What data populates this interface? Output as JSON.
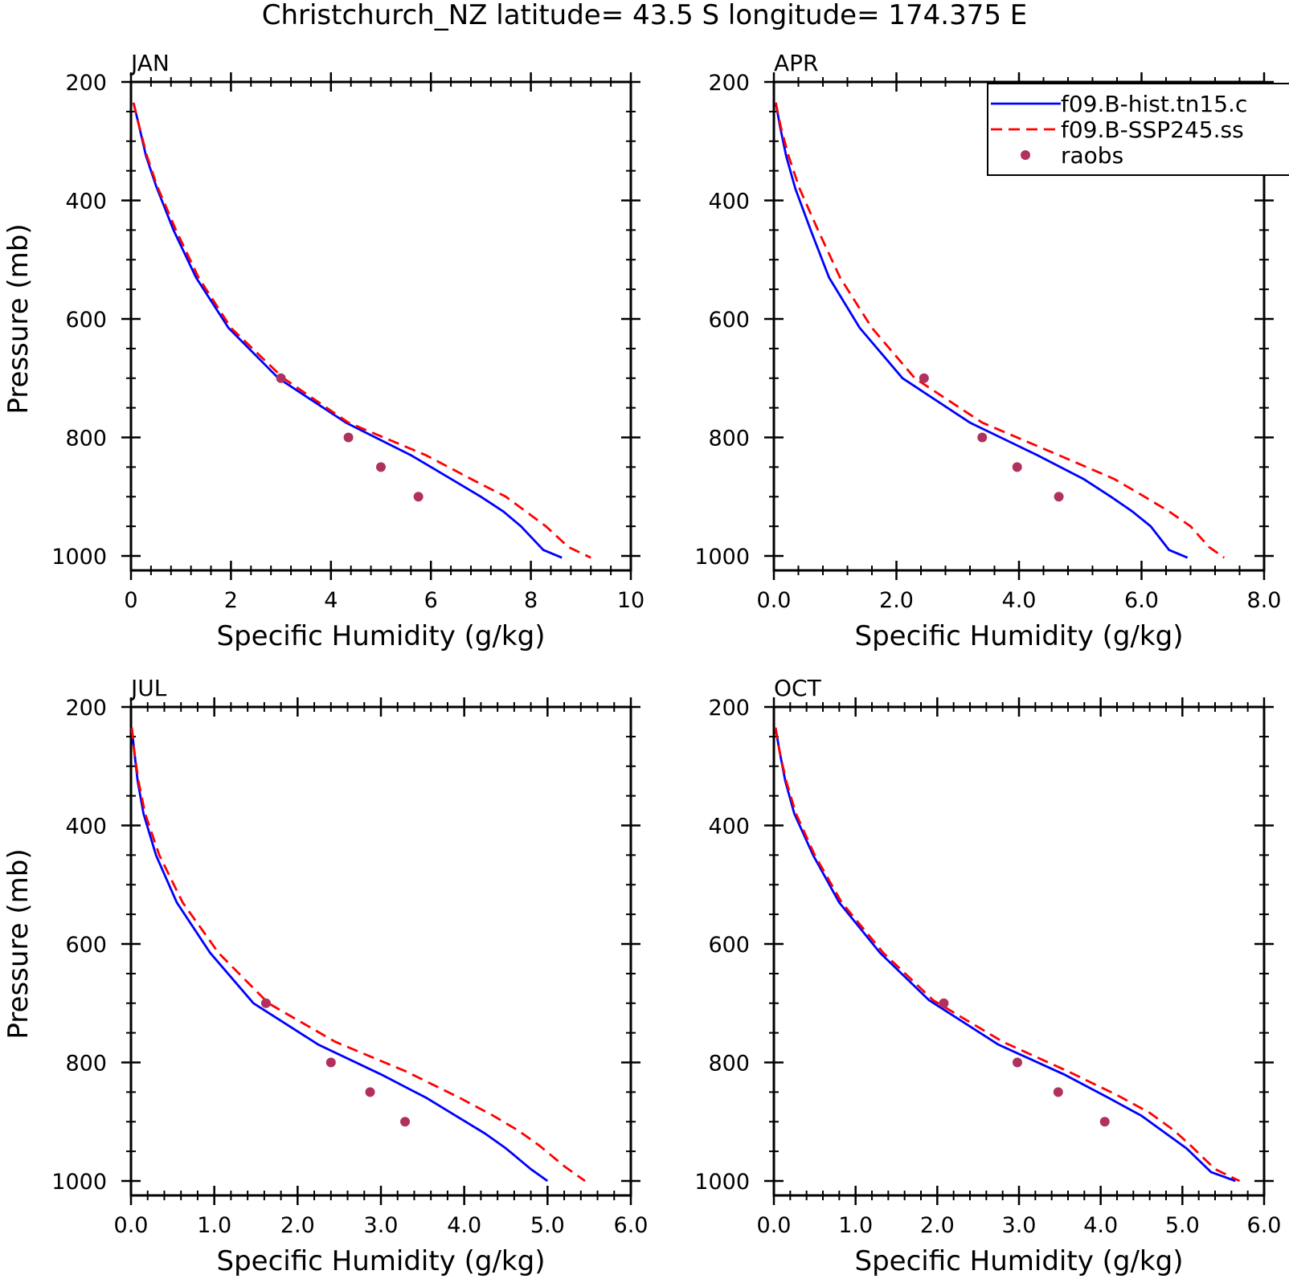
{
  "title": "Christchurch_NZ  latitude= 43.5 S longitude= 174.375 E",
  "colors": {
    "hist": "#0000ff",
    "ssp": "#ff0000",
    "raobs": "#b03060",
    "axis": "#000000"
  },
  "legend": {
    "entries": [
      {
        "label": "f09.B-hist.tn15.c",
        "style": "solid",
        "color": "#0000ff"
      },
      {
        "label": "f09.B-SSP245.ss",
        "style": "dashed",
        "color": "#ff0000"
      },
      {
        "label": "raobs",
        "style": "marker",
        "color": "#b03060"
      }
    ]
  },
  "chart_data": [
    {
      "type": "line",
      "panel": "JAN",
      "xlabel": "Specific Humidity (g/kg)",
      "ylabel": "Pressure (mb)",
      "xlim": [
        0,
        10
      ],
      "ylim": [
        200,
        1000
      ],
      "y_reversed": true,
      "xticks": [
        "0",
        "2",
        "4",
        "6",
        "8",
        "10"
      ],
      "xtick_values": [
        0,
        2,
        4,
        6,
        8,
        10
      ],
      "yticks": [
        "200",
        "400",
        "600",
        "800",
        "1000"
      ],
      "ytick_values": [
        200,
        400,
        600,
        800,
        1000
      ],
      "series": [
        {
          "name": "f09.B-hist.tn15.c",
          "style": "solid",
          "color": "#0000ff",
          "x": [
            0.05,
            0.15,
            0.3,
            0.5,
            0.85,
            1.3,
            1.95,
            2.95,
            4.3,
            5.6,
            6.4,
            7.0,
            7.45,
            7.8,
            8.25,
            8.62
          ],
          "y": [
            235,
            270,
            325,
            375,
            450,
            530,
            615,
            700,
            775,
            830,
            870,
            900,
            925,
            950,
            990,
            1003
          ]
        },
        {
          "name": "f09.B-SSP245.ss",
          "style": "dashed",
          "color": "#ff0000",
          "x": [
            0.05,
            0.15,
            0.32,
            0.52,
            0.9,
            1.35,
            2.0,
            3.05,
            4.35,
            5.9,
            6.8,
            7.5,
            7.9,
            8.3,
            8.75,
            9.2
          ],
          "y": [
            235,
            270,
            325,
            375,
            450,
            530,
            615,
            700,
            775,
            830,
            870,
            900,
            925,
            950,
            985,
            1003
          ]
        },
        {
          "name": "raobs",
          "style": "marker",
          "color": "#b03060",
          "x": [
            3.0,
            4.35,
            5.0,
            5.75
          ],
          "y": [
            700,
            800,
            850,
            900
          ]
        }
      ]
    },
    {
      "type": "line",
      "panel": "APR",
      "xlabel": "Specific Humidity (g/kg)",
      "ylabel": "",
      "xlim": [
        0,
        8
      ],
      "ylim": [
        200,
        1000
      ],
      "y_reversed": true,
      "xticks": [
        "0.0",
        "2.0",
        "4.0",
        "6.0",
        "8.0"
      ],
      "xtick_values": [
        0,
        2,
        4,
        6,
        8
      ],
      "yticks": [
        "200",
        "400",
        "600",
        "800",
        "1000"
      ],
      "ytick_values": [
        200,
        400,
        600,
        800,
        1000
      ],
      "series": [
        {
          "name": "f09.B-hist.tn15.c",
          "style": "solid",
          "color": "#0000ff",
          "x": [
            0.03,
            0.1,
            0.2,
            0.35,
            0.6,
            0.9,
            1.4,
            2.1,
            3.2,
            4.3,
            5.05,
            5.5,
            5.85,
            6.15,
            6.45,
            6.75
          ],
          "y": [
            235,
            275,
            325,
            380,
            450,
            530,
            615,
            700,
            775,
            830,
            870,
            900,
            925,
            950,
            990,
            1003
          ]
        },
        {
          "name": "f09.B-SSP245.ss",
          "style": "dashed",
          "color": "#ff0000",
          "x": [
            0.03,
            0.11,
            0.24,
            0.42,
            0.72,
            1.08,
            1.6,
            2.3,
            3.4,
            4.65,
            5.55,
            6.05,
            6.45,
            6.8,
            7.1,
            7.35
          ],
          "y": [
            235,
            275,
            325,
            380,
            450,
            530,
            615,
            700,
            775,
            830,
            870,
            900,
            925,
            950,
            985,
            1003
          ]
        },
        {
          "name": "raobs",
          "style": "marker",
          "color": "#b03060",
          "x": [
            2.45,
            3.4,
            3.97,
            4.65
          ],
          "y": [
            700,
            800,
            850,
            900
          ]
        }
      ]
    },
    {
      "type": "line",
      "panel": "JUL",
      "xlabel": "Specific Humidity (g/kg)",
      "ylabel": "Pressure (mb)",
      "xlim": [
        0,
        6
      ],
      "ylim": [
        200,
        1000
      ],
      "y_reversed": true,
      "xticks": [
        "0.0",
        "1.0",
        "2.0",
        "3.0",
        "4.0",
        "5.0",
        "6.0"
      ],
      "xtick_values": [
        0,
        1,
        2,
        3,
        4,
        5,
        6
      ],
      "yticks": [
        "200",
        "400",
        "600",
        "800",
        "1000"
      ],
      "ytick_values": [
        200,
        400,
        600,
        800,
        1000
      ],
      "series": [
        {
          "name": "f09.B-hist.tn15.c",
          "style": "solid",
          "color": "#0000ff",
          "x": [
            0.01,
            0.04,
            0.08,
            0.15,
            0.3,
            0.55,
            0.95,
            1.47,
            2.25,
            3.0,
            3.55,
            3.9,
            4.25,
            4.5,
            4.8,
            5.0
          ],
          "y": [
            235,
            275,
            325,
            380,
            450,
            530,
            615,
            700,
            770,
            820,
            860,
            890,
            920,
            945,
            980,
            1000
          ]
        },
        {
          "name": "f09.B-SSP245.ss",
          "style": "dashed",
          "color": "#ff0000",
          "x": [
            0.01,
            0.04,
            0.09,
            0.17,
            0.34,
            0.62,
            1.05,
            1.65,
            2.45,
            3.3,
            3.95,
            4.35,
            4.65,
            4.9,
            5.2,
            5.45
          ],
          "y": [
            235,
            275,
            325,
            380,
            450,
            530,
            615,
            700,
            765,
            815,
            860,
            890,
            915,
            940,
            975,
            1000
          ]
        },
        {
          "name": "raobs",
          "style": "marker",
          "color": "#b03060",
          "x": [
            1.62,
            2.4,
            2.87,
            3.29
          ],
          "y": [
            700,
            800,
            850,
            900
          ]
        }
      ]
    },
    {
      "type": "line",
      "panel": "OCT",
      "xlabel": "Specific Humidity (g/kg)",
      "ylabel": "",
      "xlim": [
        0,
        6
      ],
      "ylim": [
        200,
        1000
      ],
      "y_reversed": true,
      "xticks": [
        "0.0",
        "1.0",
        "2.0",
        "3.0",
        "4.0",
        "5.0",
        "6.0"
      ],
      "xtick_values": [
        0,
        1,
        2,
        3,
        4,
        5,
        6
      ],
      "yticks": [
        "200",
        "400",
        "600",
        "800",
        "1000"
      ],
      "ytick_values": [
        200,
        400,
        600,
        800,
        1000
      ],
      "series": [
        {
          "name": "f09.B-hist.tn15.c",
          "style": "solid",
          "color": "#0000ff",
          "x": [
            0.02,
            0.07,
            0.14,
            0.25,
            0.48,
            0.8,
            1.3,
            1.9,
            2.75,
            3.55,
            4.1,
            4.5,
            4.8,
            5.05,
            5.35,
            5.65
          ],
          "y": [
            235,
            275,
            325,
            380,
            450,
            530,
            615,
            695,
            770,
            820,
            860,
            890,
            920,
            945,
            985,
            1000
          ]
        },
        {
          "name": "f09.B-SSP245.ss",
          "style": "dashed",
          "color": "#ff0000",
          "x": [
            0.02,
            0.07,
            0.15,
            0.27,
            0.5,
            0.83,
            1.34,
            1.95,
            2.8,
            3.6,
            4.2,
            4.6,
            4.9,
            5.1,
            5.4,
            5.7
          ],
          "y": [
            235,
            275,
            325,
            380,
            450,
            530,
            615,
            695,
            765,
            815,
            855,
            885,
            915,
            940,
            980,
            1000
          ]
        },
        {
          "name": "raobs",
          "style": "marker",
          "color": "#b03060",
          "x": [
            2.08,
            2.98,
            3.48,
            4.05
          ],
          "y": [
            700,
            800,
            850,
            900
          ]
        }
      ]
    }
  ]
}
